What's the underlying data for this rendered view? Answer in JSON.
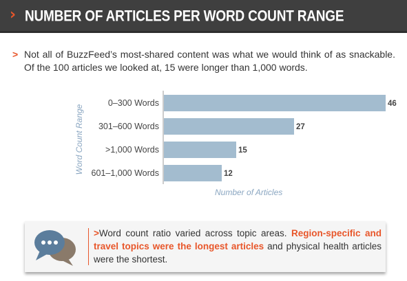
{
  "header": {
    "title": "NUMBER OF ARTICLES PER WORD COUNT RANGE"
  },
  "intro": {
    "bullet": ">",
    "text": "Not all of BuzzFeed’s most-shared content was what we would think of as snackable. Of the 100 articles we looked at, 15 were longer than 1,000 words."
  },
  "chart_data": {
    "type": "bar",
    "orientation": "horizontal",
    "categories": [
      "0–300 Words",
      "301–600 Words",
      ">1,000 Words",
      "601–1,000 Words"
    ],
    "values": [
      46,
      27,
      15,
      12
    ],
    "data_labels": [
      "46",
      "27",
      "15",
      "12"
    ],
    "xlabel": "Number of Articles",
    "ylabel": "Word Count Range",
    "xlim": [
      0,
      60
    ],
    "grid": false,
    "bar_color": "#a3bccf",
    "axis_color": "#999999"
  },
  "callout": {
    "arrow": ">",
    "text_before": "Word count ratio varied across topic areas. ",
    "highlight": "Region-specific and travel topics were the longest articles",
    "text_after": " and physical health articles were the shortest.",
    "icon": "speech-bubbles-icon",
    "highlight_color": "#e8562a"
  },
  "colors": {
    "header_bg": "#3f3f3f",
    "accent": "#e8562a",
    "label_blue": "#8aa6c1"
  }
}
